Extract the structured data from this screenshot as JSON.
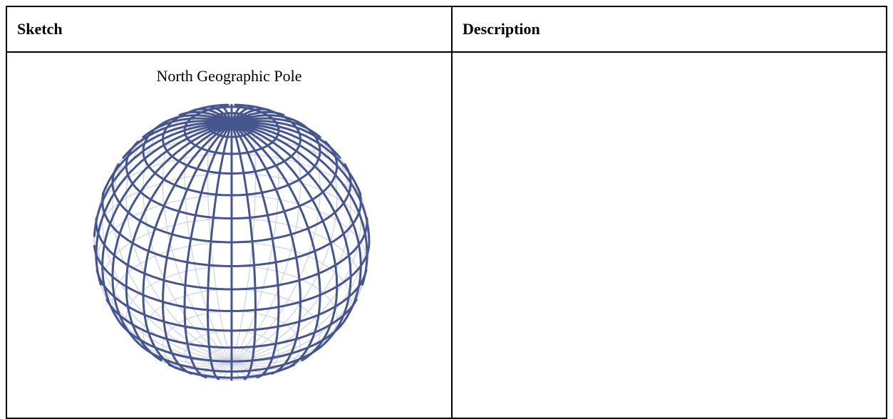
{
  "table": {
    "headers": [
      "Sketch",
      "Description"
    ],
    "rows": [
      {
        "sketch_caption": "North Geographic Pole"
      }
    ]
  }
}
